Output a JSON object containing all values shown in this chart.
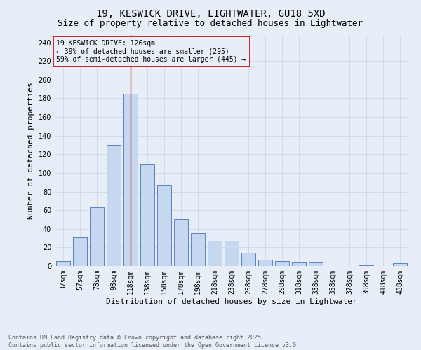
{
  "title1": "19, KESWICK DRIVE, LIGHTWATER, GU18 5XD",
  "title2": "Size of property relative to detached houses in Lightwater",
  "xlabel": "Distribution of detached houses by size in Lightwater",
  "ylabel": "Number of detached properties",
  "categories": [
    "37sqm",
    "57sqm",
    "78sqm",
    "98sqm",
    "118sqm",
    "138sqm",
    "158sqm",
    "178sqm",
    "198sqm",
    "218sqm",
    "238sqm",
    "258sqm",
    "278sqm",
    "298sqm",
    "318sqm",
    "338sqm",
    "358sqm",
    "378sqm",
    "398sqm",
    "418sqm",
    "438sqm"
  ],
  "values": [
    5,
    31,
    63,
    130,
    185,
    110,
    87,
    50,
    35,
    27,
    27,
    14,
    7,
    5,
    4,
    4,
    0,
    0,
    1,
    0,
    3
  ],
  "bar_color": "#c5d8f0",
  "bar_edge_color": "#4472c4",
  "grid_color": "#d0d8e8",
  "background_color": "#e8eef8",
  "vline_x_index": 4,
  "vline_color": "#cc0000",
  "annotation_line1": "19 KESWICK DRIVE: 126sqm",
  "annotation_line2": "← 39% of detached houses are smaller (295)",
  "annotation_line3": "59% of semi-detached houses are larger (445) →",
  "annotation_box_color": "#cc0000",
  "ylim": [
    0,
    248
  ],
  "yticks": [
    0,
    20,
    40,
    60,
    80,
    100,
    120,
    140,
    160,
    180,
    200,
    220,
    240
  ],
  "footnote": "Contains HM Land Registry data © Crown copyright and database right 2025.\nContains public sector information licensed under the Open Government Licence v3.0.",
  "title_fontsize": 10,
  "subtitle_fontsize": 9,
  "axis_label_fontsize": 8,
  "tick_fontsize": 7,
  "annotation_fontsize": 7,
  "footnote_fontsize": 6
}
